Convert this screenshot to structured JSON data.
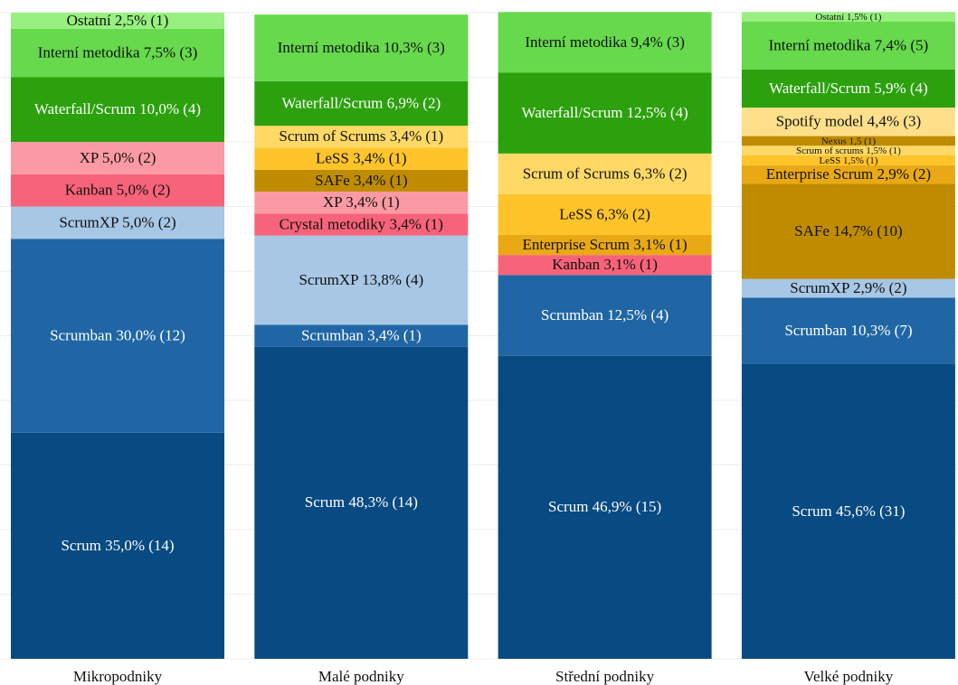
{
  "chart_data": {
    "type": "stacked_bar",
    "categories": [
      "Mikropodniky",
      "Malé podniky",
      "Střední podniky",
      "Velké podniky"
    ],
    "ylim": [
      0,
      100
    ],
    "yticks": [
      0,
      10,
      20,
      30,
      40,
      50,
      60,
      70,
      80,
      90,
      100
    ],
    "grid": true,
    "series": [
      {
        "color": "#084a82",
        "values": [
          35.0,
          48.3,
          46.9,
          45.6
        ],
        "value_labels": [
          "Scrum 35,0% (14)",
          "Scrum 48,3% (14)",
          "Scrum 46,9% (15)",
          "Scrum 45,6% (31)"
        ]
      },
      {
        "color": "#2066a5",
        "values": [
          30.0,
          3.4,
          12.5,
          10.3
        ],
        "value_labels": [
          "Scrumban 30,0% (12)",
          "Scrumban 3,4% (1)",
          "Scrumban 12,5% (4)",
          "Scrumban 10,3% (7)"
        ]
      },
      {
        "color": "#a7c7e4",
        "values": [
          5.0,
          13.8,
          null,
          2.9
        ],
        "value_labels": [
          "ScrumXP 5,0% (2)",
          "ScrumXP 13,8% (4)",
          null,
          "ScrumXP 2,9% (2)"
        ]
      },
      {
        "color": "#f7637a",
        "values": [
          null,
          3.4,
          null,
          null
        ],
        "value_labels": [
          null,
          "Crystal metodiky 3,4% (1)",
          null,
          null
        ]
      },
      {
        "color": "#f7637a",
        "values": [
          5.0,
          null,
          3.1,
          null
        ],
        "value_labels": [
          "Kanban 5,0% (2)",
          null,
          "Kanban 3,1% (1)",
          null
        ]
      },
      {
        "color": "#fb9aa4",
        "values": [
          5.0,
          3.4,
          null,
          null
        ],
        "value_labels": [
          "XP 5,0% (2)",
          "XP 3,4% (1)",
          null,
          null
        ]
      },
      {
        "color": "#bf8c00",
        "values": [
          null,
          3.4,
          null,
          14.7
        ],
        "value_labels": [
          null,
          "SAFe 3,4% (1)",
          null,
          "SAFe 14,7% (10)"
        ]
      },
      {
        "color": "#e9a914",
        "values": [
          null,
          null,
          3.1,
          2.9
        ],
        "value_labels": [
          null,
          null,
          "Enterprise Scrum 3,1% (1)",
          "Enterprise Scrum 2,9% (2)"
        ]
      },
      {
        "color": "#fec42a",
        "values": [
          null,
          3.4,
          6.3,
          1.5
        ],
        "value_labels": [
          null,
          "LeSS 3,4% (1)",
          "LeSS 6,3% (2)",
          "LeSS 1,5% (1)"
        ]
      },
      {
        "color": "#ffd966",
        "values": [
          null,
          3.4,
          6.3,
          1.5
        ],
        "value_labels": [
          null,
          "Scrum of Scrums 3,4% (1)",
          "Scrum of Scrums 6,3% (2)",
          "Scrum of scrums 1,5% (1)"
        ]
      },
      {
        "color": "#bf8c00",
        "values": [
          null,
          null,
          null,
          1.5
        ],
        "value_labels": [
          null,
          null,
          null,
          "Nexus 1,5 (1)"
        ]
      },
      {
        "color": "#ffe08a",
        "values": [
          null,
          null,
          null,
          4.4
        ],
        "value_labels": [
          null,
          null,
          null,
          "Spotify model 4,4% (3)"
        ]
      },
      {
        "color": "#2ca10e",
        "values": [
          10.0,
          6.9,
          12.5,
          5.9
        ],
        "value_labels": [
          "Waterfall/Scrum 10,0% (4)",
          "Waterfall/Scrum 6,9% (2)",
          "Waterfall/Scrum 12,5% (4)",
          "Waterfall/Scrum 5,9% (4)"
        ]
      },
      {
        "color": "#66d94c",
        "values": [
          7.5,
          10.3,
          9.4,
          7.4
        ],
        "value_labels": [
          "Interní metodika 7,5% (3)",
          "Interní metodika 10,3% (3)",
          "Interní metodika 9,4% (3)",
          "Interní metodika 7,4% (5)"
        ]
      },
      {
        "color": "#97f07f",
        "values": [
          2.5,
          null,
          null,
          1.5
        ],
        "value_labels": [
          "Ostatní 2,5% (1)",
          null,
          null,
          "Ostatní 1,5% (1)"
        ]
      }
    ]
  }
}
